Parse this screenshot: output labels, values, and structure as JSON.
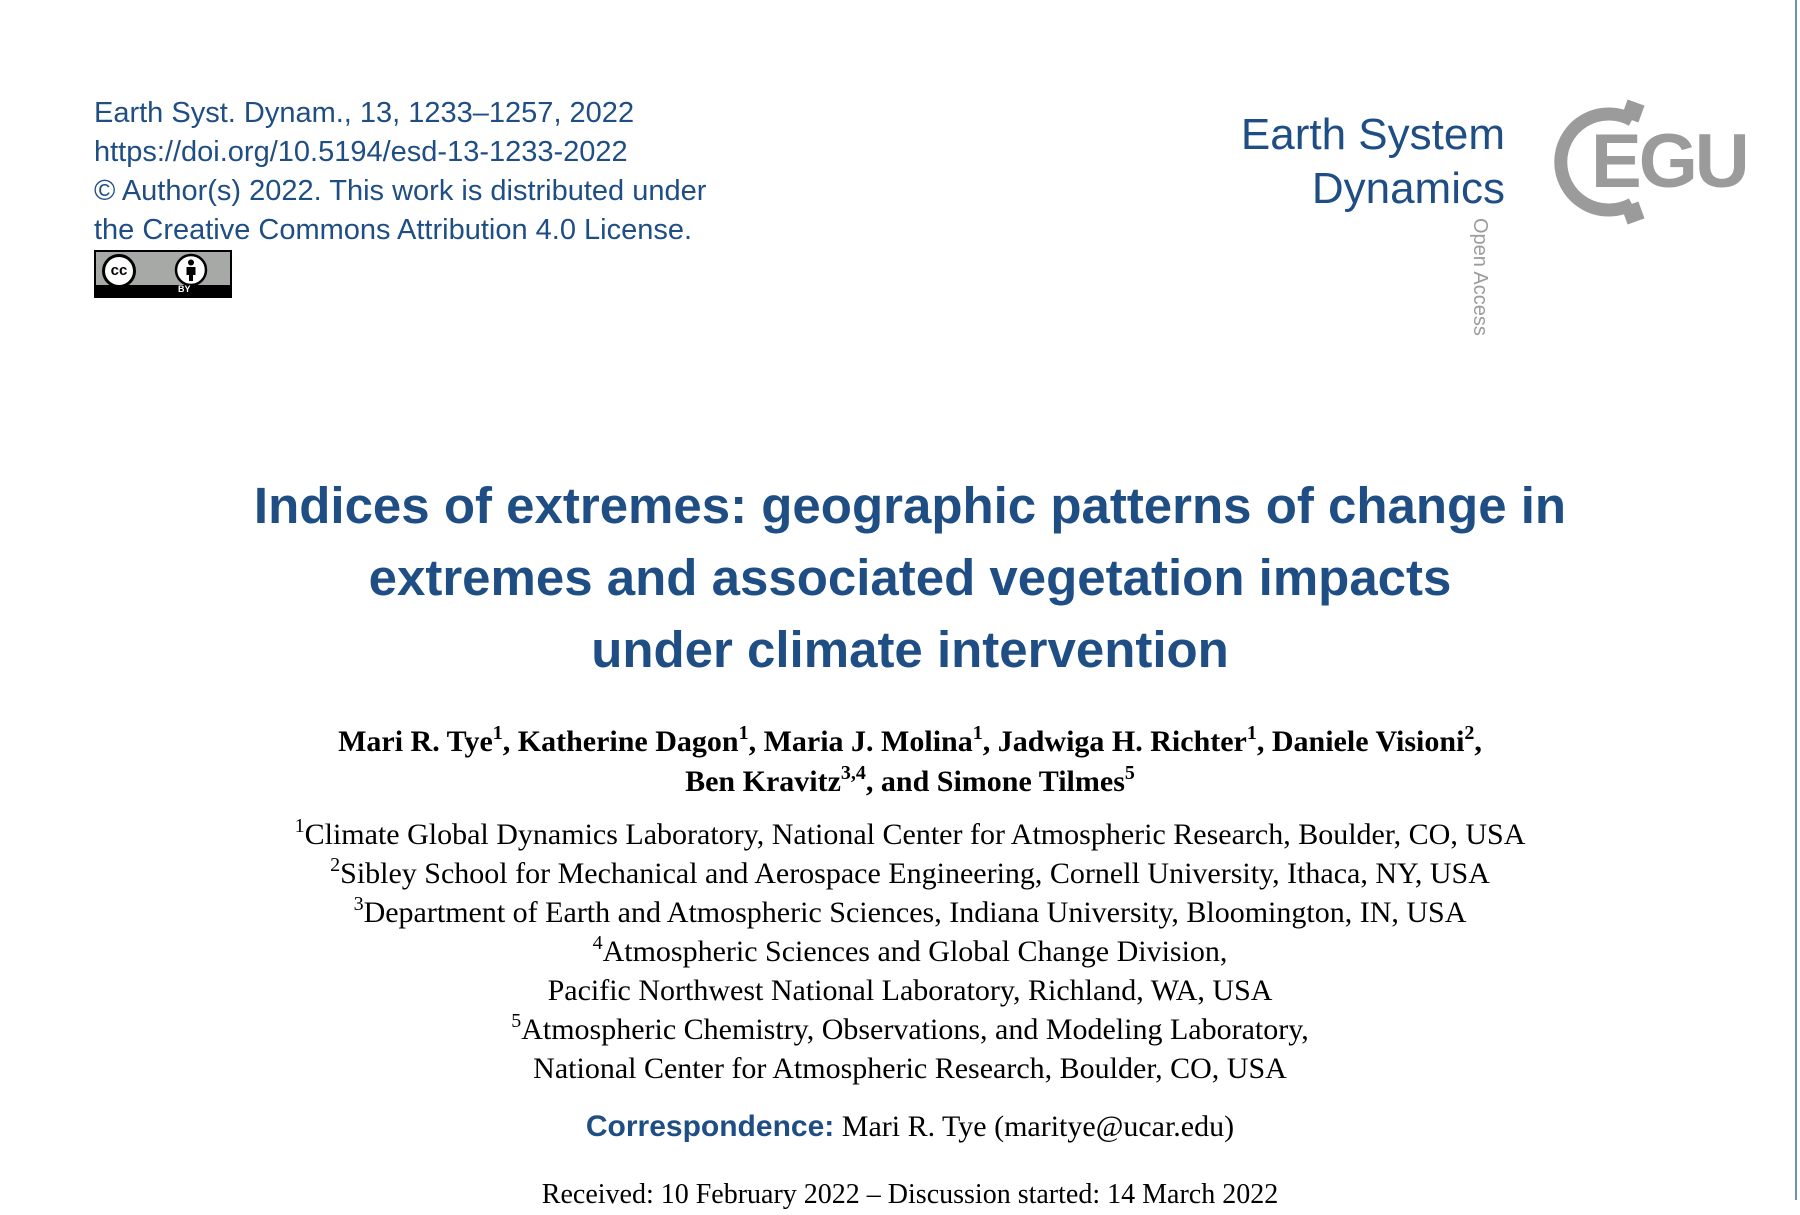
{
  "citation": {
    "line1": "Earth Syst. Dynam., 13, 1233–1257, 2022",
    "line2": "https://doi.org/10.5194/esd-13-1233-2022",
    "line3": "© Author(s) 2022. This work is distributed under",
    "line4": "the Creative Commons Attribution 4.0 License."
  },
  "license_badge": {
    "cc": "cc",
    "by": "BY"
  },
  "journal": {
    "name_line1": "Earth System",
    "name_line2": "Dynamics",
    "open_access": "Open Access",
    "publisher_logo": "EGU"
  },
  "title": {
    "line1": "Indices of extremes: geographic patterns of change in",
    "line2": "extremes and associated vegetation impacts",
    "line3": "under climate intervention"
  },
  "authors": [
    {
      "name": "Mari R. Tye",
      "aff": "1",
      "sep": ", "
    },
    {
      "name": "Katherine Dagon",
      "aff": "1",
      "sep": ", "
    },
    {
      "name": "Maria J. Molina",
      "aff": "1",
      "sep": ", "
    },
    {
      "name": "Jadwiga H. Richter",
      "aff": "1",
      "sep": ", "
    },
    {
      "name": "Daniele Visioni",
      "aff": "2",
      "sep": ","
    },
    {
      "name": "Ben Kravitz",
      "aff": "3,4",
      "sep": ", "
    },
    {
      "name": "and Simone Tilmes",
      "aff": "5",
      "sep": ""
    }
  ],
  "affiliations": [
    {
      "num": "1",
      "text": "Climate Global Dynamics Laboratory, National Center for Atmospheric Research, Boulder, CO, USA",
      "cont": ""
    },
    {
      "num": "2",
      "text": "Sibley School for Mechanical and Aerospace Engineering, Cornell University, Ithaca, NY, USA",
      "cont": ""
    },
    {
      "num": "3",
      "text": "Department of Earth and Atmospheric Sciences, Indiana University, Bloomington, IN, USA",
      "cont": ""
    },
    {
      "num": "4",
      "text": "Atmospheric Sciences and Global Change Division,",
      "cont": "Pacific Northwest National Laboratory, Richland, WA, USA"
    },
    {
      "num": "5",
      "text": "Atmospheric Chemistry, Observations, and Modeling Laboratory,",
      "cont": "National Center for Atmospheric Research, Boulder, CO, USA"
    }
  ],
  "correspondence": {
    "label": "Correspondence:",
    "value": "Mari R. Tye (maritye@ucar.edu)"
  },
  "received": "Received: 10 February 2022 – Discussion started: 14 March 2022",
  "colors": {
    "journal_blue": "#1f4e85",
    "logo_gray": "#9b9b9b"
  }
}
